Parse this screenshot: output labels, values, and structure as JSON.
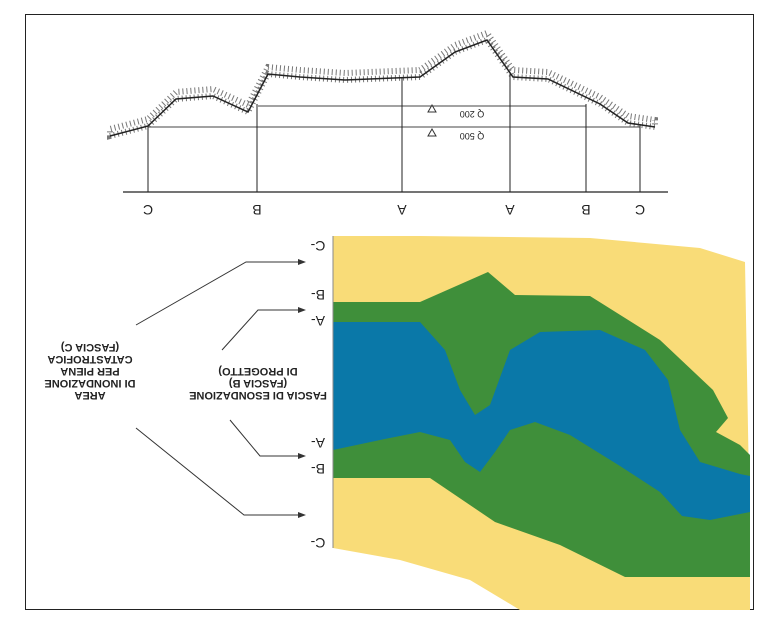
{
  "section_letters": {
    "c": "C",
    "b": "B",
    "a": "A"
  },
  "plan_markers": {
    "c_top": "C-",
    "b_top": "B-",
    "a_top": "A-",
    "a_bottom": "A-",
    "b_bottom": "B-",
    "c_bottom": "C-"
  },
  "levels": {
    "q200": "Q 200",
    "q500": "Q 500"
  },
  "labels": {
    "fascia_c": [
      "AREA",
      "DI INONDAZIONE",
      "PER PIENA",
      "CATASTROFICA",
      "(FASCIA C)"
    ],
    "fascia_b": [
      "FASCIA DI ESONDAZIONE",
      "(FASCIA B)",
      "DI PROGETTO)"
    ]
  },
  "colors": {
    "fascia_c": "#f9dc78",
    "fascia_b": "#3f8f3a",
    "fascia_a": "#0a78a8",
    "line": "#222222"
  }
}
